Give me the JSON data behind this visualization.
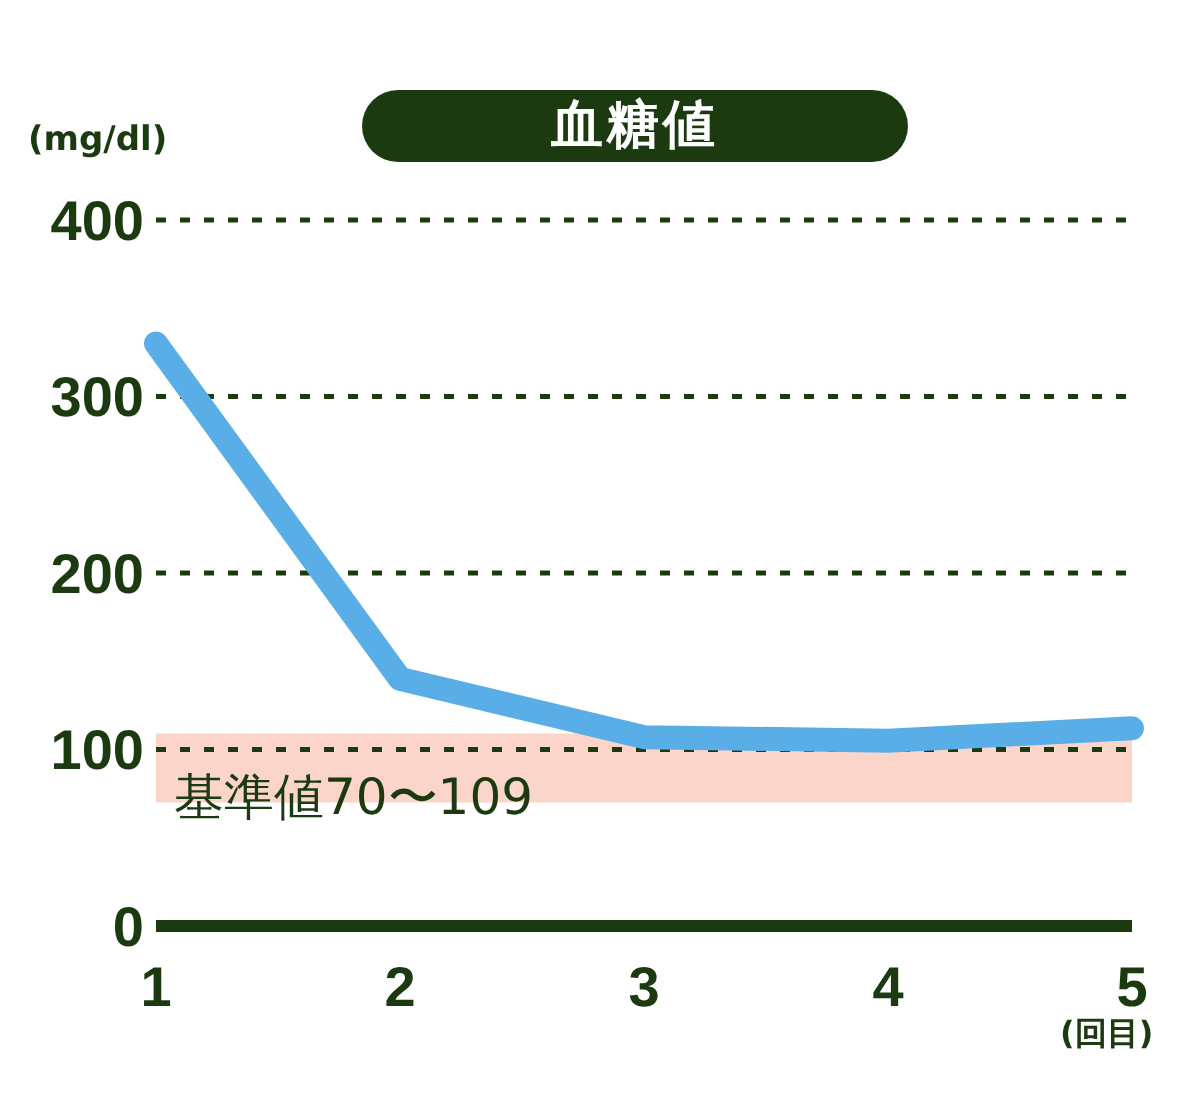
{
  "chart_data": {
    "type": "line",
    "title": "血糖値",
    "ylabel": "(mg/dl)",
    "xlabel": "(回目)",
    "x": [
      1,
      2,
      3,
      4,
      5
    ],
    "xlim": [
      1,
      5
    ],
    "xticks": [
      1,
      2,
      3,
      4,
      5
    ],
    "ylim": [
      0,
      400
    ],
    "yticks": [
      0,
      100,
      200,
      300,
      400
    ],
    "series": [
      {
        "color": "#5aaee8",
        "values": [
          330,
          140,
          107,
          105,
          112
        ]
      }
    ],
    "bands": [
      {
        "axis": "y",
        "from": 70,
        "to": 109,
        "label": "基準値70〜109",
        "color": "#fcd5ca"
      }
    ],
    "grid": "y",
    "line_style": "solid"
  }
}
